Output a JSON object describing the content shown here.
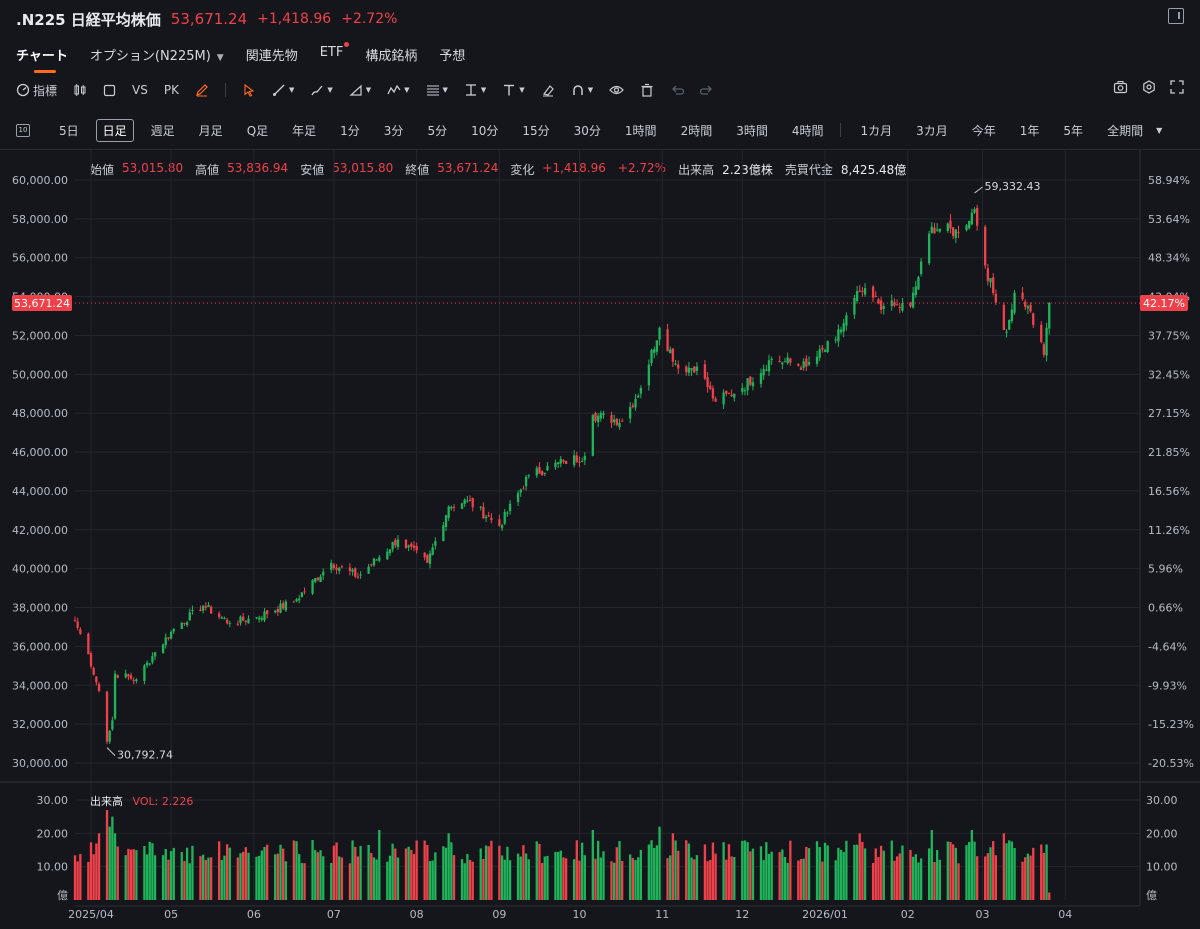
{
  "header": {
    "symbol": ".N225 日経平均株価",
    "price": "53,671.24",
    "change": "+1,418.96",
    "change_pct": "+2.72%"
  },
  "tabs": [
    {
      "label": "チャート",
      "active": true
    },
    {
      "label": "オプション(N225M)",
      "has_caret": true
    },
    {
      "label": "関連先物"
    },
    {
      "label": "ETF",
      "has_dot": true
    },
    {
      "label": "構成銘柄"
    },
    {
      "label": "予想"
    }
  ],
  "toolbar": {
    "indicator_label": "指標",
    "vs_label": "VS",
    "pk_label": "PK"
  },
  "periods": [
    "5日",
    "日足",
    "週足",
    "月足",
    "Q足",
    "年足",
    "1分",
    "3分",
    "5分",
    "10分",
    "15分",
    "30分",
    "1時間",
    "2時間",
    "3時間",
    "4時間",
    "1カ月",
    "3カ月",
    "今年",
    "1年",
    "5年",
    "全期間"
  ],
  "active_period": "日足",
  "ohlc_info": {
    "open_label": "始値",
    "open": "53,015.80",
    "high_label": "高値",
    "high": "53,836.94",
    "low_label": "安値",
    "low": "53,015.80",
    "close_label": "終値",
    "close": "53,671.24",
    "change_label": "変化",
    "change": "+1,418.96",
    "change_pct": "+2.72%",
    "volume_label": "出来高",
    "volume": "2.23億株",
    "turnover_label": "売買代金",
    "turnover": "8,425.48億"
  },
  "volume_info": {
    "label": "出来高",
    "vol_text": "VOL: 2.226"
  },
  "colors": {
    "up": "#1fb45a",
    "down": "#f0414a",
    "background": "#14161b",
    "accent": "#ff6b1a"
  },
  "chart_data": {
    "type": "candlestick",
    "xlabel": "",
    "ylabel": "",
    "ylim": [
      29400,
      60800
    ],
    "yticks": [
      "60,000.00",
      "58,000.00",
      "56,000.00",
      "54,000.00",
      "52,000.00",
      "50,000.00",
      "48,000.00",
      "46,000.00",
      "44,000.00",
      "42,000.00",
      "40,000.00",
      "38,000.00",
      "36,000.00",
      "34,000.00",
      "32,000.00",
      "30,000.00"
    ],
    "ytick_values": [
      60000,
      58000,
      56000,
      54000,
      52000,
      50000,
      48000,
      46000,
      44000,
      42000,
      40000,
      38000,
      36000,
      34000,
      32000,
      30000
    ],
    "pct_ticks": [
      "58.94%",
      "53.64%",
      "48.34%",
      "43.04%",
      "37.75%",
      "32.45%",
      "27.15%",
      "21.85%",
      "16.56%",
      "11.26%",
      "5.96%",
      "0.66%",
      "-4.64%",
      "-9.93%",
      "-15.23%",
      "-20.53%"
    ],
    "xticks": [
      "2025/04",
      "05",
      "06",
      "07",
      "08",
      "09",
      "10",
      "11",
      "12",
      "2026/01",
      "02",
      "03",
      "04"
    ],
    "xtick_dates": [
      "2025-04-01",
      "2025-05-01",
      "2025-06-01",
      "2025-07-01",
      "2025-08-01",
      "2025-09-01",
      "2025-10-01",
      "2025-11-01",
      "2025-12-01",
      "2026-01-01",
      "2026-02-01",
      "2026-03-01",
      "2026-04-01"
    ],
    "x_range": [
      "2025-03-26",
      "2026-04-29"
    ],
    "current_price": 53671.24,
    "current_price_label": "53,671.24",
    "current_pct_label": "42.17%",
    "max_annotation": {
      "date": "2026-02-26",
      "value": 59332.43,
      "label": "59,332.43"
    },
    "min_annotation": {
      "date": "2025-04-07",
      "value": 30792.74,
      "label": "30,792.74"
    },
    "close_anchors": [
      [
        "2025-03-26",
        37300
      ],
      [
        "2025-03-31",
        35600
      ],
      [
        "2025-04-04",
        33700
      ],
      [
        "2025-04-07",
        31100
      ],
      [
        "2025-04-09",
        32200
      ],
      [
        "2025-04-10",
        34600
      ],
      [
        "2025-04-18",
        34300
      ],
      [
        "2025-04-25",
        35700
      ],
      [
        "2025-05-02",
        36900
      ],
      [
        "2025-05-13",
        38100
      ],
      [
        "2025-05-23",
        37200
      ],
      [
        "2025-06-02",
        37500
      ],
      [
        "2025-06-16",
        38300
      ],
      [
        "2025-06-30",
        40300
      ],
      [
        "2025-07-10",
        39600
      ],
      [
        "2025-07-25",
        41500
      ],
      [
        "2025-08-05",
        40300
      ],
      [
        "2025-08-13",
        43200
      ],
      [
        "2025-08-20",
        43500
      ],
      [
        "2025-09-01",
        42200
      ],
      [
        "2025-09-12",
        44800
      ],
      [
        "2025-09-25",
        45500
      ],
      [
        "2025-10-03",
        45800
      ],
      [
        "2025-10-06",
        47900
      ],
      [
        "2025-10-17",
        47600
      ],
      [
        "2025-10-24",
        49300
      ],
      [
        "2025-10-31",
        52400
      ],
      [
        "2025-11-07",
        50300
      ],
      [
        "2025-11-14",
        50400
      ],
      [
        "2025-11-21",
        48600
      ],
      [
        "2025-12-01",
        49300
      ],
      [
        "2025-12-12",
        50800
      ],
      [
        "2025-12-25",
        50400
      ],
      [
        "2026-01-05",
        51800
      ],
      [
        "2026-01-14",
        54300
      ],
      [
        "2026-01-23",
        53500
      ],
      [
        "2026-02-02",
        53500
      ],
      [
        "2026-02-10",
        57600
      ],
      [
        "2026-02-20",
        57300
      ],
      [
        "2026-02-26",
        58500
      ],
      [
        "2026-03-02",
        55600
      ],
      [
        "2026-03-06",
        53700
      ],
      [
        "2026-03-10",
        52200
      ],
      [
        "2026-03-13",
        54200
      ],
      [
        "2026-03-18",
        53500
      ],
      [
        "2026-03-24",
        51000
      ],
      [
        "2026-03-26",
        53671
      ]
    ],
    "volume_axis": {
      "ylim": [
        0,
        32
      ],
      "ticks": [
        "30.00",
        "20.00",
        "10.00"
      ],
      "tick_values": [
        30,
        20,
        10
      ],
      "unit_label": "億"
    },
    "volume_level_range": [
      11,
      18
    ],
    "volume_spikes": [
      [
        "2025-04-04",
        20
      ],
      [
        "2025-04-07",
        27
      ],
      [
        "2025-04-08",
        22
      ],
      [
        "2025-04-09",
        25
      ],
      [
        "2025-04-10",
        20
      ],
      [
        "2025-07-18",
        21
      ],
      [
        "2025-08-13",
        20
      ],
      [
        "2025-10-06",
        21
      ],
      [
        "2025-10-31",
        22
      ],
      [
        "2025-11-05",
        20
      ],
      [
        "2026-01-14",
        20
      ],
      [
        "2026-02-10",
        21
      ],
      [
        "2026-02-25",
        21
      ],
      [
        "2026-03-09",
        20
      ]
    ],
    "last_volume": 2.226
  }
}
